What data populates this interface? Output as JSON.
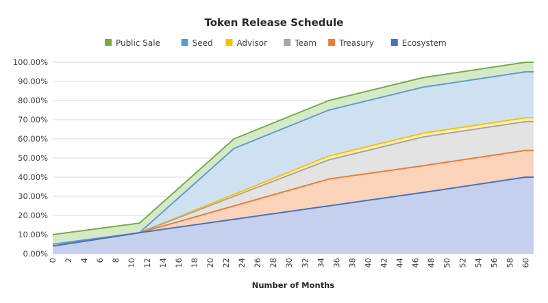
{
  "chart_data": {
    "type": "area",
    "title": "Token Release Schedule",
    "xlabel": "Number of Months",
    "ylabel": "",
    "xlim": [
      0,
      61
    ],
    "ylim": [
      0,
      100
    ],
    "y_tick_labels": [
      "0.00%",
      "10.00%",
      "20.00%",
      "30.00%",
      "40.00%",
      "50.00%",
      "60.00%",
      "70.00%",
      "80.00%",
      "90.00%",
      "100.00%"
    ],
    "x_tick_labels": [
      "0",
      "2",
      "4",
      "6",
      "8",
      "10",
      "12",
      "14",
      "16",
      "18",
      "20",
      "22",
      "24",
      "26",
      "28",
      "30",
      "32",
      "34",
      "36",
      "38",
      "40",
      "42",
      "44",
      "46",
      "48",
      "50",
      "52",
      "54",
      "56",
      "58",
      "60"
    ],
    "x": [
      0,
      11,
      23,
      35,
      47,
      60,
      61
    ],
    "grid": true,
    "legend": "top",
    "series": [
      {
        "name": "Ecosystem",
        "color": "#4472c4",
        "fill": "#c5d0ec",
        "values": [
          4,
          11,
          18,
          25,
          32,
          40,
          40
        ]
      },
      {
        "name": "Treasury",
        "color": "#ed7d31",
        "fill": "#fbd3bb",
        "values": [
          4,
          11,
          25,
          39,
          46,
          54,
          54
        ]
      },
      {
        "name": "Team",
        "color": "#a5a5a5",
        "fill": "#e3e3e3",
        "values": [
          4,
          11,
          30,
          49,
          61,
          69,
          69
        ]
      },
      {
        "name": "Advisor",
        "color": "#ffc000",
        "fill": "#fff0b8",
        "values": [
          4,
          11,
          31,
          51,
          63,
          71,
          71
        ]
      },
      {
        "name": "Seed",
        "color": "#5b9bd5",
        "fill": "#cfe1f1",
        "values": [
          5,
          11,
          55,
          75,
          87,
          95,
          95
        ]
      },
      {
        "name": "Public Sale",
        "color": "#70ad47",
        "fill": "#d6e9c6",
        "values": [
          10,
          16,
          60,
          80,
          92,
          100,
          100
        ]
      }
    ],
    "legend_order": [
      "Public Sale",
      "Seed",
      "Advisor",
      "Team",
      "Treasury",
      "Ecosystem"
    ]
  }
}
